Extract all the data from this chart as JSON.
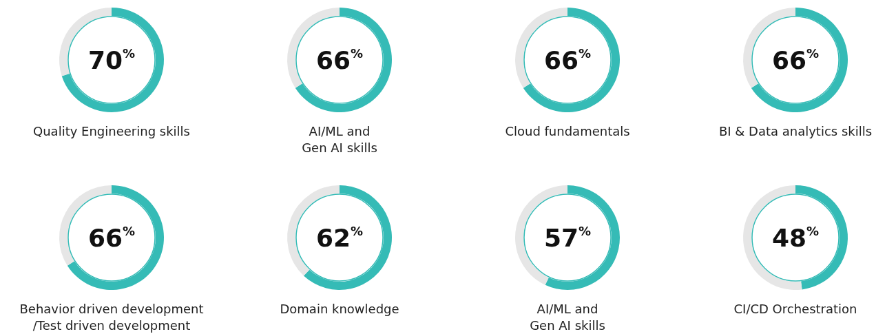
{
  "chart_data": [
    {
      "type": "donut",
      "title": "Quality Engineering skills",
      "categories": [
        null,
        null
      ],
      "values": [
        70,
        30
      ],
      "colors": [
        "#35bbb6",
        "#e6e6e6"
      ],
      "value_labels": [
        "70$^{%}$",
        null
      ]
    },
    {
      "type": "donut",
      "title": "AI/ML and\nGen AI skills",
      "categories": [
        null,
        null
      ],
      "values": [
        66,
        34
      ],
      "colors": [
        "#35bbb6",
        "#e6e6e6"
      ],
      "value_labels": [
        "66$^{%}$",
        null
      ]
    },
    {
      "type": "donut",
      "title": "Cloud fundamentals",
      "categories": [
        null,
        null
      ],
      "values": [
        66,
        34
      ],
      "colors": [
        "#35bbb6",
        "#e6e6e6"
      ],
      "value_labels": [
        "66$^{%}$",
        null
      ]
    },
    {
      "type": "donut",
      "title": "BI & Data analytics skills",
      "categories": [
        null,
        null
      ],
      "values": [
        66,
        34
      ],
      "colors": [
        "#35bbb6",
        "#e6e6e6"
      ],
      "value_labels": [
        "66$^{%}$",
        null
      ]
    },
    {
      "type": "donut",
      "title": "Behavior driven development\n/Test driven development",
      "categories": [
        null,
        null
      ],
      "values": [
        66,
        34
      ],
      "colors": [
        "#35bbb6",
        "#e6e6e6"
      ],
      "value_labels": [
        "66$^{%}$",
        null
      ]
    },
    {
      "type": "donut",
      "title": "Domain knowledge",
      "categories": [
        null,
        null
      ],
      "values": [
        62,
        38
      ],
      "colors": [
        "#35bbb6",
        "#e6e6e6"
      ],
      "value_labels": [
        "62$^{%}$",
        null
      ]
    },
    {
      "type": "donut",
      "title": "AI/ML and\nGen AI skills",
      "categories": [
        null,
        null
      ],
      "values": [
        57,
        43
      ],
      "colors": [
        "#35bbb6",
        "#e6e6e6"
      ],
      "value_labels": [
        "57$^{%}$",
        null
      ]
    },
    {
      "type": "donut",
      "title": "CI/CD Orchestration",
      "categories": [
        null,
        null
      ],
      "values": [
        48,
        52
      ],
      "colors": [
        "#35bbb6",
        "#e6e6e6"
      ],
      "value_labels": [
        "48$^{%}$",
        null
      ]
    }
  ]
}
